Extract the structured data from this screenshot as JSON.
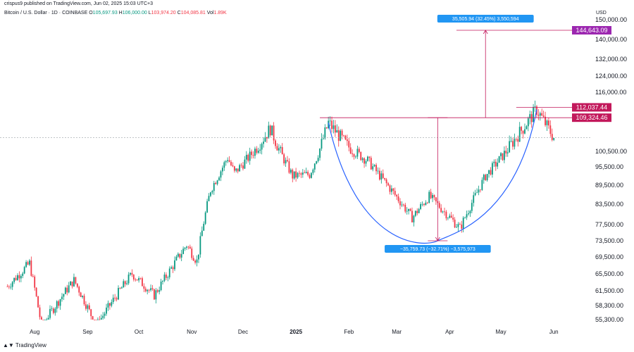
{
  "header": {
    "published": "crispus9 published on TradingView.com, Jun 02, 2025 15:03 UTC+3",
    "symbol": "Bitcoin / U.S. Dollar · 1D · COINBASE",
    "o_label": "O",
    "o": "105,697.93",
    "h_label": "H",
    "h": "106,000.00",
    "l_label": "L",
    "l": "103,974.20",
    "c_label": "C",
    "c": "104,085.81",
    "vol_label": "Vol",
    "vol": "1.89K",
    "currency": "USD"
  },
  "footer": {
    "logo_text": "TradingView"
  },
  "colors": {
    "up": "#089981",
    "down": "#f23645",
    "curve": "#2962ff",
    "level": "#c2185b",
    "measure_label": "#2196f3",
    "target_label": "#9c27b0",
    "grid_axis_text": "#131722"
  },
  "chart_data": {
    "type": "candlestick",
    "y_ticks": [
      "150,000.00",
      "140,000.00",
      "132,000.00",
      "124,000.00",
      "116,000.00",
      "100,500.00",
      "95,500.00",
      "89,500.00",
      "83,500.00",
      "77,500.00",
      "73,500.00",
      "69,500.00",
      "65,500.00",
      "61,500.00",
      "58,300.00",
      "55,300.00"
    ],
    "x_ticks": [
      "Aug",
      "Sep",
      "Oct",
      "Nov",
      "Dec",
      "2025",
      "Feb",
      "Mar",
      "Apr",
      "May",
      "Jun"
    ],
    "price_labels": [
      {
        "text": "144,643.09",
        "value": 144643.09,
        "kind": "target"
      },
      {
        "text": "112,037.44",
        "value": 112037.44,
        "kind": "level"
      },
      {
        "text": "109,324.46",
        "value": 109324.46,
        "kind": "level"
      }
    ],
    "annotations": [
      {
        "text": "35,505.94 (32.45%) 3,550,594",
        "kind": "measure-up"
      },
      {
        "text": "−35,759.73 (−32.71%) −3,575,973",
        "kind": "measure-down"
      }
    ],
    "key_points": [
      {
        "date": "2024-07-16",
        "close": 62500
      },
      {
        "date": "2024-07-29",
        "close": 68000
      },
      {
        "date": "2024-08-05",
        "close": 54000
      },
      {
        "date": "2024-08-24",
        "close": 64000
      },
      {
        "date": "2024-09-06",
        "close": 54000
      },
      {
        "date": "2024-09-27",
        "close": 65500
      },
      {
        "date": "2024-10-10",
        "close": 60500
      },
      {
        "date": "2024-10-29",
        "close": 72500
      },
      {
        "date": "2024-11-04",
        "close": 68500
      },
      {
        "date": "2024-11-12",
        "close": 88000
      },
      {
        "date": "2024-11-22",
        "close": 98500
      },
      {
        "date": "2024-11-26",
        "close": 93500
      },
      {
        "date": "2024-12-05",
        "close": 99000
      },
      {
        "date": "2024-12-17",
        "close": 106500
      },
      {
        "date": "2024-12-30",
        "close": 92500
      },
      {
        "date": "2025-01-09",
        "close": 93000
      },
      {
        "date": "2025-01-20",
        "close": 108000
      },
      {
        "date": "2025-01-31",
        "close": 102000
      },
      {
        "date": "2025-02-12",
        "close": 97500
      },
      {
        "date": "2025-02-25",
        "close": 88500
      },
      {
        "date": "2025-03-10",
        "close": 79500
      },
      {
        "date": "2025-03-20",
        "close": 86000
      },
      {
        "date": "2025-04-07",
        "close": 76500
      },
      {
        "date": "2025-04-22",
        "close": 92500
      },
      {
        "date": "2025-05-08",
        "close": 103000
      },
      {
        "date": "2025-05-22",
        "close": 111500
      },
      {
        "date": "2025-06-01",
        "close": 104085.81
      }
    ]
  }
}
